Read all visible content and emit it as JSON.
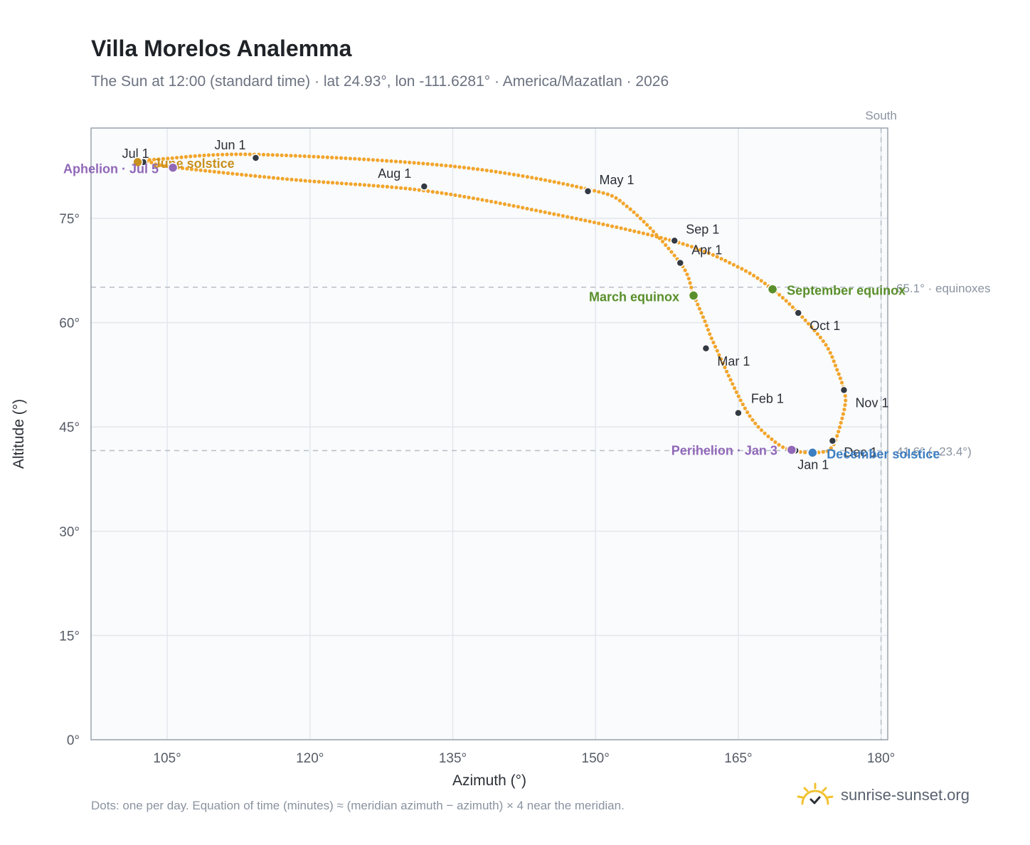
{
  "title": "Villa Morelos Analemma",
  "subtitle": "The Sun at 12:00 (standard time) · lat 24.93°, lon -111.6281° · America/Mazatlan · 2026",
  "footer_note": "Dots: one per day. Equation of time (minutes) ≈ (meridian azimuth − azimuth) × 4 near the meridian.",
  "brand": {
    "name": "sunrise-sunset.org",
    "icon": "sun-logo-icon"
  },
  "colors": {
    "path": "#f2a52b",
    "month_dot": "#333a44",
    "equinox": "#5a8f2b",
    "december": "#3d7ec2",
    "june": "#c8901c",
    "aphelion": "#9168b8",
    "plot_bg": "#f9fbfd",
    "grid": "#e3e7ec",
    "ref_line": "#b8bec7",
    "frame": "#9aa3ad"
  },
  "chart_data": {
    "type": "scatter",
    "xlabel": "Azimuth (°)",
    "ylabel": "Altitude (°)",
    "xlim": [
      97,
      180.7
    ],
    "ylim": [
      0,
      88
    ],
    "x_ticks": [
      105,
      120,
      135,
      150,
      165,
      180
    ],
    "x_tick_labels": [
      "105°",
      "120°",
      "135°",
      "150°",
      "165°",
      "180°"
    ],
    "y_ticks": [
      0,
      15,
      30,
      45,
      60,
      75
    ],
    "y_tick_labels": [
      "0°",
      "15°",
      "30°",
      "45°",
      "60°",
      "75°"
    ],
    "grid": true,
    "analemma_control_points": [
      {
        "az": 174.4,
        "alt": 41.5
      },
      {
        "az": 172.8,
        "alt": 41.3
      },
      {
        "az": 170.8,
        "alt": 41.6
      },
      {
        "az": 168.9,
        "alt": 42.8
      },
      {
        "az": 166.0,
        "alt": 47.0
      },
      {
        "az": 162.6,
        "alt": 56.5
      },
      {
        "az": 161.4,
        "alt": 60.5
      },
      {
        "az": 160.3,
        "alt": 64.0
      },
      {
        "az": 158.9,
        "alt": 68.6
      },
      {
        "az": 153.5,
        "alt": 76.5
      },
      {
        "az": 149.2,
        "alt": 79.2
      },
      {
        "az": 135.0,
        "alt": 82.5
      },
      {
        "az": 114.3,
        "alt": 84.2
      },
      {
        "az": 104.0,
        "alt": 83.5
      },
      {
        "az": 102.6,
        "alt": 83.3
      },
      {
        "az": 103.5,
        "alt": 83.0
      },
      {
        "az": 105.5,
        "alt": 82.4
      },
      {
        "az": 118.0,
        "alt": 80.6
      },
      {
        "az": 132.0,
        "alt": 79.0
      },
      {
        "az": 145.0,
        "alt": 75.8
      },
      {
        "az": 158.3,
        "alt": 71.7
      },
      {
        "az": 165.0,
        "alt": 68.0
      },
      {
        "az": 168.6,
        "alt": 64.8
      },
      {
        "az": 171.3,
        "alt": 61.4
      },
      {
        "az": 174.1,
        "alt": 57.0
      },
      {
        "az": 175.3,
        "alt": 53.5
      },
      {
        "az": 176.1,
        "alt": 50.3
      },
      {
        "az": 176.2,
        "alt": 48.0
      },
      {
        "az": 175.2,
        "alt": 43.0
      },
      {
        "az": 174.4,
        "alt": 41.5
      }
    ],
    "month_markers": [
      {
        "label": "Jan 1",
        "az": 171.0,
        "alt": 41.6
      },
      {
        "label": "Feb 1",
        "az": 165.0,
        "alt": 47.0
      },
      {
        "label": "Mar 1",
        "az": 161.6,
        "alt": 56.3
      },
      {
        "label": "Apr 1",
        "az": 158.9,
        "alt": 68.6
      },
      {
        "label": "May 1",
        "az": 149.2,
        "alt": 78.9
      },
      {
        "label": "Jun 1",
        "az": 114.3,
        "alt": 83.7
      },
      {
        "label": "Jul 1",
        "az": 102.5,
        "alt": 83.1
      },
      {
        "label": "Aug 1",
        "az": 132.0,
        "alt": 79.6
      },
      {
        "label": "Sep 1",
        "az": 158.3,
        "alt": 71.8
      },
      {
        "label": "Oct 1",
        "az": 171.3,
        "alt": 61.4
      },
      {
        "label": "Nov 1",
        "az": 176.1,
        "alt": 50.3
      },
      {
        "label": "Dec 1",
        "az": 174.9,
        "alt": 43.0
      }
    ],
    "events": [
      {
        "label": "March equinox",
        "az": 160.3,
        "alt": 63.9,
        "color": "#5a8f2b"
      },
      {
        "label": "September equinox",
        "az": 168.6,
        "alt": 64.8,
        "color": "#5a8f2b"
      },
      {
        "label": "December solstice",
        "az": 172.8,
        "alt": 41.3,
        "color": "#3d7ec2"
      },
      {
        "label": "June solstice",
        "az": 101.9,
        "alt": 83.1,
        "color": "#c8901c"
      },
      {
        "label": "Perihelion · Jan 3",
        "az": 170.6,
        "alt": 41.7,
        "color": "#9168b8"
      },
      {
        "label": "Aphelion · Jul 5",
        "az": 105.6,
        "alt": 82.3,
        "color": "#9168b8"
      }
    ],
    "reference_lines": [
      {
        "type": "horizontal",
        "value": 65.1,
        "label": "65.1° · equinoxes"
      },
      {
        "type": "horizontal",
        "value": 41.6,
        "label": "41.6° (−23.4°)"
      },
      {
        "type": "vertical",
        "value": 180,
        "label": "South"
      }
    ]
  }
}
